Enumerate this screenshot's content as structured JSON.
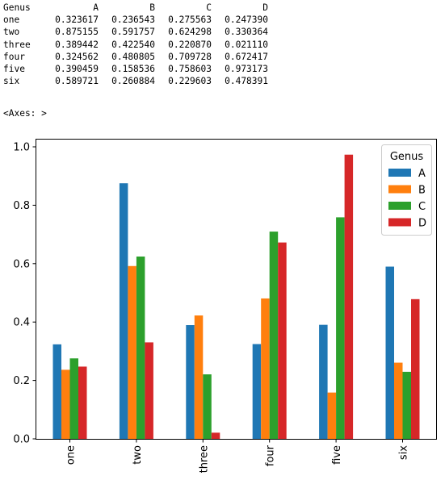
{
  "output": {
    "table": {
      "index_name": "Genus",
      "columns": [
        "A",
        "B",
        "C",
        "D"
      ],
      "rows": [
        {
          "label": "one",
          "values": [
            "0.323617",
            "0.236543",
            "0.275563",
            "0.247390"
          ]
        },
        {
          "label": "two",
          "values": [
            "0.875155",
            "0.591757",
            "0.624298",
            "0.330364"
          ]
        },
        {
          "label": "three",
          "values": [
            "0.389442",
            "0.422540",
            "0.220870",
            "0.021110"
          ]
        },
        {
          "label": "four",
          "values": [
            "0.324562",
            "0.480805",
            "0.709728",
            "0.672417"
          ]
        },
        {
          "label": "five",
          "values": [
            "0.390459",
            "0.158536",
            "0.758603",
            "0.973173"
          ]
        },
        {
          "label": "six",
          "values": [
            "0.589721",
            "0.260884",
            "0.229603",
            "0.478391"
          ]
        }
      ]
    },
    "axes_repr": "<Axes: >"
  },
  "chart_data": {
    "type": "bar",
    "categories": [
      "one",
      "two",
      "three",
      "four",
      "five",
      "six"
    ],
    "series": [
      {
        "name": "A",
        "color": "#1f77b4",
        "values": [
          0.323617,
          0.875155,
          0.389442,
          0.324562,
          0.390459,
          0.589721
        ]
      },
      {
        "name": "B",
        "color": "#ff7f0e",
        "values": [
          0.236543,
          0.591757,
          0.42254,
          0.480805,
          0.158536,
          0.260884
        ]
      },
      {
        "name": "C",
        "color": "#2ca02c",
        "values": [
          0.275563,
          0.624298,
          0.22087,
          0.709728,
          0.758603,
          0.229603
        ]
      },
      {
        "name": "D",
        "color": "#d62728",
        "values": [
          0.24739,
          0.330364,
          0.02111,
          0.672417,
          0.973173,
          0.478391
        ]
      }
    ],
    "ylim": [
      0.0,
      1.0
    ],
    "yticks": [
      "0.0",
      "0.2",
      "0.4",
      "0.6",
      "0.8",
      "1.0"
    ],
    "legend": {
      "title": "Genus",
      "placement": "top-right"
    },
    "grid": false,
    "xlabel": "",
    "ylabel": "",
    "title": "",
    "x_tick_rotation": "vertical"
  }
}
